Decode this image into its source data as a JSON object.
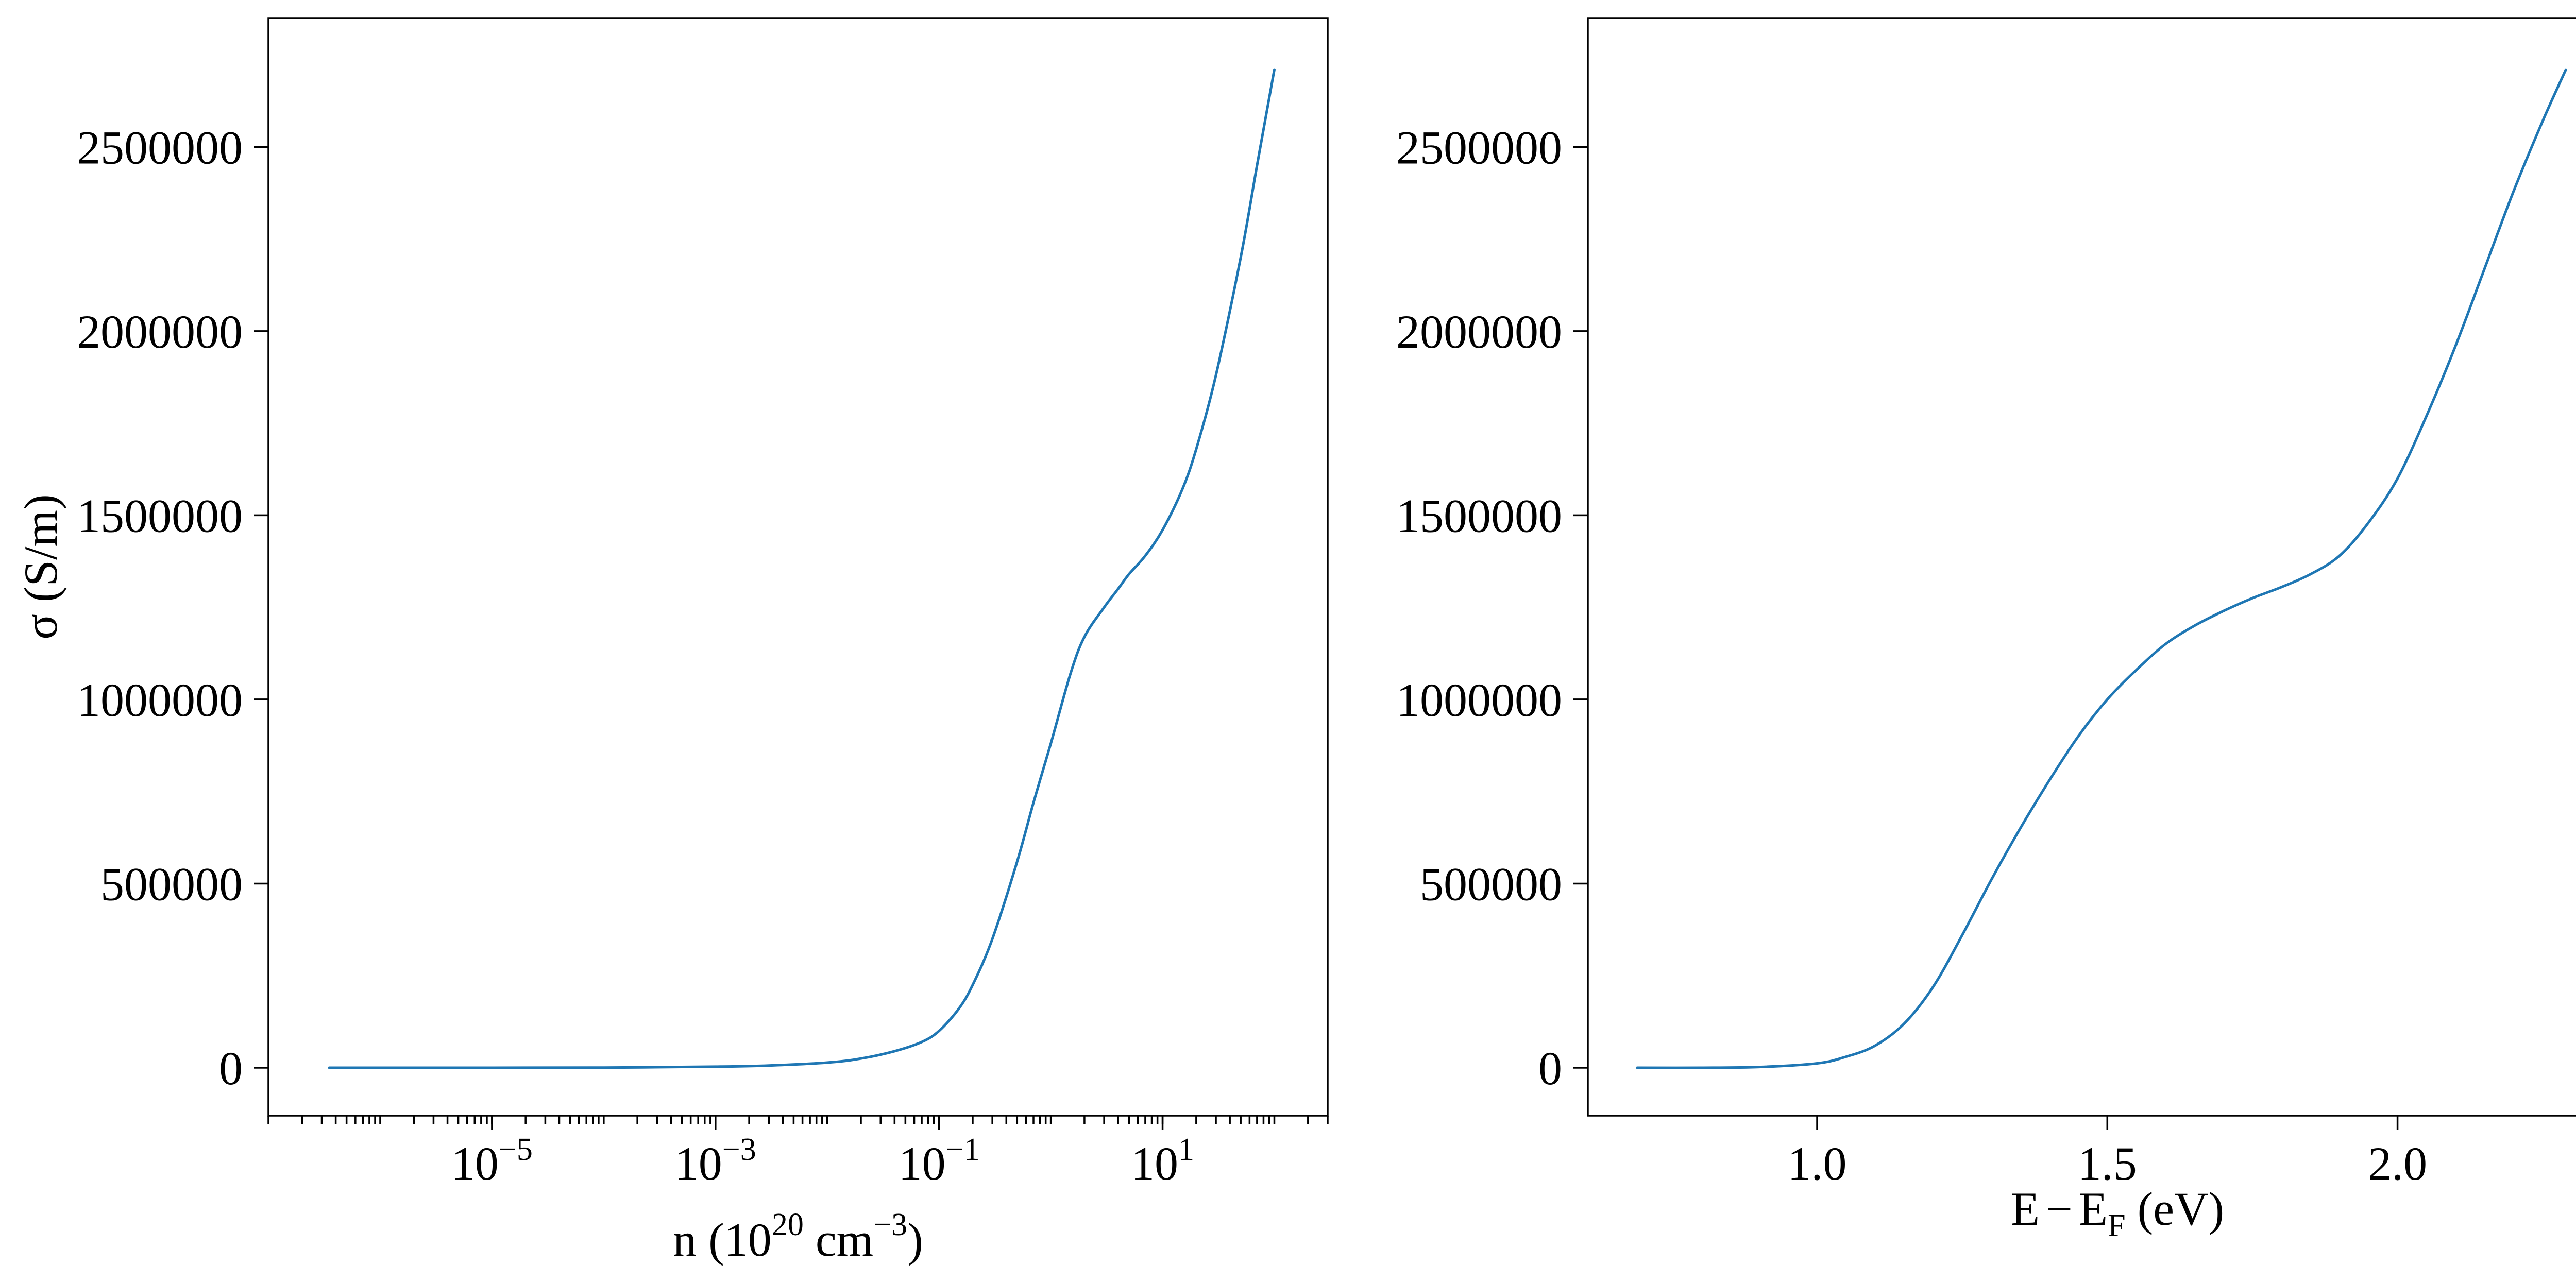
{
  "chart_data": [
    {
      "type": "line",
      "xscale": "log",
      "xlabel": {
        "prefix": "n (10",
        "sup1": "20",
        "mid": " cm",
        "sup2": "−3",
        "suffix": ")"
      },
      "ylabel": "σ (S/m)",
      "xlim": [
        1e-07,
        300
      ],
      "ylim": [
        -130000,
        2850000
      ],
      "xticks": [
        {
          "value": 1e-05,
          "base": "10",
          "exp": "−5"
        },
        {
          "value": 0.001,
          "base": "10",
          "exp": "−3"
        },
        {
          "value": 0.1,
          "base": "10",
          "exp": "−1"
        },
        {
          "value": 10,
          "base": "10",
          "exp": "1"
        }
      ],
      "yticks": [
        {
          "value": 0,
          "label": "0"
        },
        {
          "value": 500000,
          "label": "500000"
        },
        {
          "value": 1000000,
          "label": "1000000"
        },
        {
          "value": 1500000,
          "label": "1500000"
        },
        {
          "value": 2000000,
          "label": "2000000"
        },
        {
          "value": 2500000,
          "label": "2500000"
        }
      ],
      "grid": false,
      "series": [
        {
          "color": "#1f77b4",
          "x": [
            3.5e-07,
            1e-06,
            1e-05,
            0.0001,
            0.001,
            0.003,
            0.01,
            0.02,
            0.04,
            0.07,
            0.1,
            0.15,
            0.2,
            0.3,
            0.5,
            0.7,
            1,
            1.5,
            2,
            3,
            4,
            5,
            7,
            10,
            15,
            20,
            30,
            50,
            70,
            100
          ],
          "y": [
            0,
            0,
            0,
            500,
            3000,
            6000,
            14000,
            25000,
            45000,
            70000,
            100000,
            160000,
            225000,
            350000,
            560000,
            720000,
            880000,
            1070000,
            1170000,
            1250000,
            1300000,
            1340000,
            1390000,
            1460000,
            1570000,
            1680000,
            1880000,
            2200000,
            2450000,
            2710000
          ]
        }
      ]
    },
    {
      "type": "line",
      "xscale": "linear",
      "xlabel": {
        "prefix": "E",
        "minus": "−",
        "mid": "E",
        "sub": "F",
        "suffix": " (eV)"
      },
      "ylabel": "",
      "xlim": [
        0.605,
        2.43
      ],
      "ylim": [
        -130000,
        2850000
      ],
      "xticks": [
        {
          "value": 1.0,
          "label": "1.0"
        },
        {
          "value": 1.5,
          "label": "1.5"
        },
        {
          "value": 2.0,
          "label": "2.0"
        }
      ],
      "yticks": [
        {
          "value": 0,
          "label": "0"
        },
        {
          "value": 500000,
          "label": "500000"
        },
        {
          "value": 1000000,
          "label": "1000000"
        },
        {
          "value": 1500000,
          "label": "1500000"
        },
        {
          "value": 2000000,
          "label": "2000000"
        },
        {
          "value": 2500000,
          "label": "2500000"
        }
      ],
      "grid": false,
      "series": [
        {
          "color": "#1f77b4",
          "x": [
            0.69,
            0.8,
            0.9,
            1.0,
            1.05,
            1.1,
            1.15,
            1.2,
            1.25,
            1.3,
            1.35,
            1.4,
            1.45,
            1.5,
            1.55,
            1.6,
            1.65,
            1.7,
            1.75,
            1.8,
            1.85,
            1.9,
            1.95,
            2.0,
            2.05,
            2.1,
            2.15,
            2.2,
            2.25,
            2.29
          ],
          "y": [
            0,
            0,
            2000,
            12000,
            30000,
            60000,
            120000,
            220000,
            360000,
            510000,
            650000,
            780000,
            900000,
            1000000,
            1080000,
            1150000,
            1200000,
            1240000,
            1275000,
            1305000,
            1340000,
            1390000,
            1480000,
            1600000,
            1770000,
            1960000,
            2170000,
            2380000,
            2570000,
            2710000
          ]
        }
      ]
    }
  ]
}
